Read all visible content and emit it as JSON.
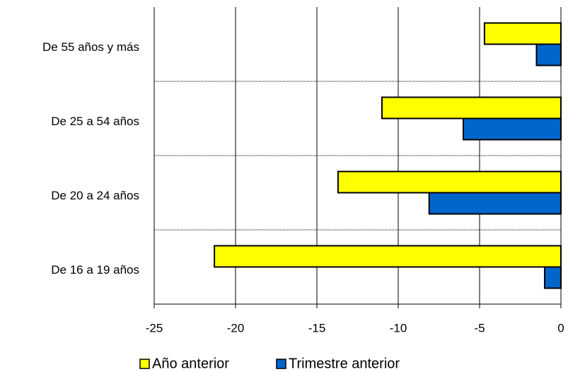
{
  "chart_data": {
    "type": "barh",
    "categories": [
      "De 55 años y más",
      "De 25 a 54 años",
      "De 20 a 24 años",
      "De 16 a 19 años"
    ],
    "series": [
      {
        "name": "Año anterior",
        "color": "#ffff00",
        "values": [
          -4.7,
          -11.0,
          -13.7,
          -21.3
        ]
      },
      {
        "name": "Trimestre anterior",
        "color": "#0066cc",
        "values": [
          -1.5,
          -6.0,
          -8.1,
          -1.0
        ]
      }
    ],
    "xlim": [
      -25,
      0
    ],
    "xticks": [
      -25,
      -20,
      -15,
      -10,
      -5,
      0
    ],
    "grid": true
  }
}
